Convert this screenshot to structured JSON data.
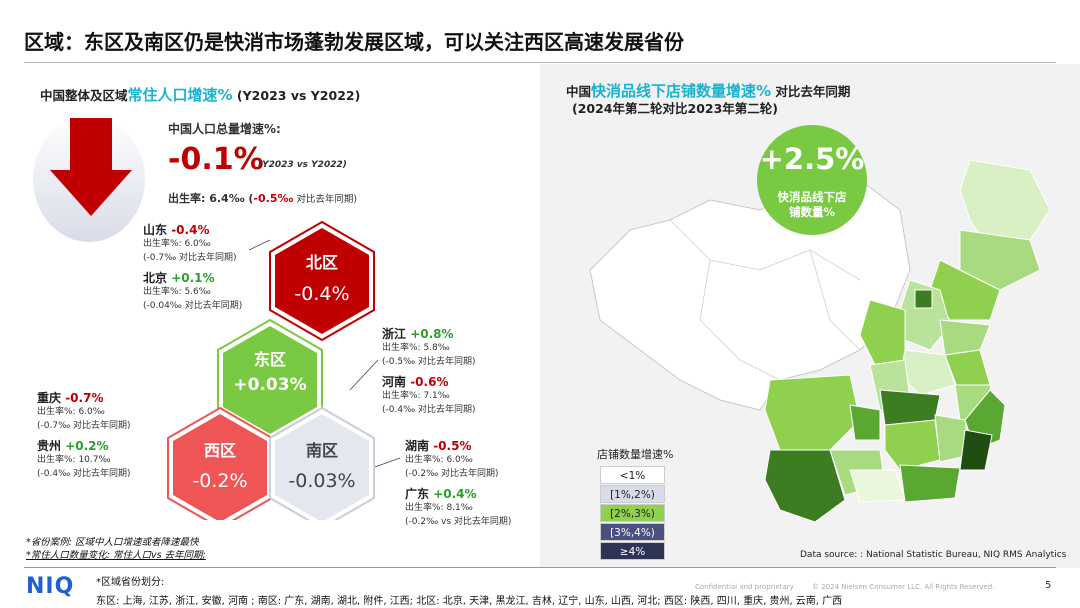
{
  "title": "区域：东区及南区仍是快消市场蓬勃发展区域，可以关注西区高速发展省份",
  "left": {
    "heading_prefix": "中国整体及区域",
    "heading_highlight": "常住人口增速%",
    "heading_suffix": "(Y2023 vs Y2022)",
    "total_label": "中国人口总量增速%:",
    "total_value": "-0.1%",
    "total_period": "(Y2023 vs Y2022)",
    "birth_prefix": "出生率: 6.4‰ (",
    "birth_change": "-0.5‰",
    "birth_suffix": "对比去年同期)"
  },
  "hexes": [
    {
      "name": "北区",
      "value": "-0.4%",
      "color": "#c00000"
    },
    {
      "name": "东区",
      "value": "+0.03%",
      "color": "#7ac943"
    },
    {
      "name": "西区",
      "value": "-0.2%",
      "color": "#ef5555"
    },
    {
      "name": "南区",
      "value": "-0.03%",
      "color": "#e4e6f0"
    }
  ],
  "provinces": [
    {
      "name": "山东",
      "change": "-0.4%",
      "sign": "neg",
      "birth": "出生率%: 6.0‰",
      "yoy": "(-0.7‰ 对比去年同期)"
    },
    {
      "name": "北京",
      "change": "+0.1%",
      "sign": "pos",
      "birth": "出生率%: 5.6‰",
      "yoy": "(-0.04‰ 对比去年同期)"
    },
    {
      "name": "浙江",
      "change": "+0.8%",
      "sign": "pos",
      "birth": "出生率%: 5.8‰",
      "yoy": "(-0.5‰ 对比去年同期)"
    },
    {
      "name": "河南",
      "change": "-0.6%",
      "sign": "neg",
      "birth": "出生率%: 7.1‰",
      "yoy": "(-0.4‰ 对比去年同期)"
    },
    {
      "name": "重庆",
      "change": "-0.7%",
      "sign": "neg",
      "birth": "出生率%: 6.0‰",
      "yoy": "(-0.7‰ 对比去年同期)"
    },
    {
      "name": "贵州",
      "change": "+0.2%",
      "sign": "pos",
      "birth": "出生率%: 10.7‰",
      "yoy": "(-0.4‰ 对比去年同期)"
    },
    {
      "name": "湖南",
      "change": "-0.5%",
      "sign": "neg",
      "birth": "出生率%: 6.0‰",
      "yoy": "(-0.2‰ 对比去年同期)"
    },
    {
      "name": "广东",
      "change": "+0.4%",
      "sign": "pos",
      "birth": "出生率%: 8.1‰",
      "yoy": "(-0.2‰ vs 对比去年同期)"
    }
  ],
  "footnotes": {
    "note1": "*省份案例: 区域中人口增速或者降速最快",
    "note2": "*常住人口数量变化: 常住人口vs 去年同期;",
    "regions_label": "*区域省份划分:",
    "regions_line": "东区: 上海, 江苏, 浙江, 安徽, 河南 ; 南区: 广东, 湖南, 湖北, 附件, 江西; 北区: 北京, 天津, 黑龙江, 吉林, 辽宁, 山东, 山西, 河北; 西区: 陕西, 四川, 重庆, 贵州, 云南, 广西"
  },
  "right": {
    "heading_prefix": "中国",
    "heading_highlight": "快消品线下店铺数量增速%",
    "heading_suffix": "对比去年同期",
    "heading_sub": "(2024年第二轮对比2023年第二轮)",
    "bubble_value": "+2.5%",
    "bubble_label_1": "快消品线下店",
    "bubble_label_2": "铺数量%",
    "legend_title": "店铺数量增速%",
    "legend": [
      {
        "label": "<1%",
        "color": "#ffffff",
        "text": "#222"
      },
      {
        "label": "[1%,2%)",
        "color": "#d9dce8",
        "text": "#222"
      },
      {
        "label": "[2%,3%)",
        "color": "#8fd14f",
        "text": "#222"
      },
      {
        "label": "[3%,4%)",
        "color": "#4a5080",
        "text": "#fff"
      },
      {
        "label": "≥4%",
        "color": "#2e3454",
        "text": "#fff"
      }
    ],
    "source": "Data source: : National Statistic Bureau,  NIQ RMS Analytics"
  },
  "footer": {
    "logo": "NIQ",
    "confidential": "Confidential and proprietary",
    "copyright": "© 2024 Nielsen Consumer LLC. All Rights Reserved.",
    "page": "5"
  },
  "colors": {
    "accent": "#19b3d0",
    "negative": "#c00000",
    "positive": "#2aa02a",
    "brand": "#1f5fd6"
  }
}
